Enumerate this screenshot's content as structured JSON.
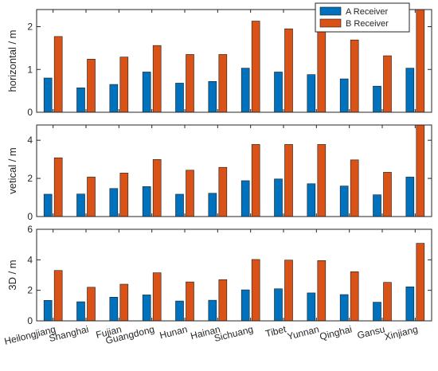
{
  "colors": {
    "series_a": "#0072BD",
    "series_b": "#D95319",
    "axis": "#262626",
    "grid": "#e6e6e6"
  },
  "chart_data": [
    {
      "type": "bar",
      "ylabel": "horizontal / m",
      "ylim": [
        0,
        2.4
      ],
      "yticks": [
        0,
        1,
        2
      ],
      "grid": false,
      "legend": "top-right",
      "categories": [
        "Heilongjiang",
        "Shanghai",
        "Fujian",
        "Guangdong",
        "Hunan",
        "Hainan",
        "Sichuang",
        "Tibet",
        "Yunnan",
        "Qinghai",
        "Gansu",
        "Xinjiang"
      ],
      "series": [
        {
          "name": "A Receiver",
          "values": [
            0.8,
            0.57,
            0.65,
            0.94,
            0.68,
            0.72,
            1.03,
            0.94,
            0.88,
            0.78,
            0.61,
            1.03
          ]
        },
        {
          "name": "B Receiver",
          "values": [
            1.77,
            1.24,
            1.29,
            1.56,
            1.35,
            1.35,
            2.13,
            1.95,
            1.88,
            1.69,
            1.32,
            2.4
          ]
        }
      ]
    },
    {
      "type": "bar",
      "ylabel": "vetical / m",
      "ylim": [
        0,
        4.8
      ],
      "yticks": [
        0,
        2,
        4
      ],
      "grid": false,
      "categories": [
        "Heilongjiang",
        "Shanghai",
        "Fujian",
        "Guangdong",
        "Hunan",
        "Hainan",
        "Sichuang",
        "Tibet",
        "Yunnan",
        "Qinghai",
        "Gansu",
        "Xinjiang"
      ],
      "series": [
        {
          "name": "A Receiver",
          "values": [
            1.17,
            1.18,
            1.47,
            1.57,
            1.17,
            1.22,
            1.88,
            1.97,
            1.72,
            1.6,
            1.14,
            2.07
          ]
        },
        {
          "name": "B Receiver",
          "values": [
            3.08,
            2.07,
            2.28,
            2.99,
            2.43,
            2.58,
            3.78,
            3.78,
            3.78,
            2.97,
            2.32,
            4.8
          ]
        }
      ]
    },
    {
      "type": "bar",
      "ylabel": "3D / m",
      "ylim": [
        0,
        6
      ],
      "yticks": [
        0,
        2,
        4,
        6
      ],
      "grid": false,
      "categories": [
        "Heilongjiang",
        "Shanghai",
        "Fujian",
        "Guangdong",
        "Hunan",
        "Hainan",
        "Sichuang",
        "Tibet",
        "Yunnan",
        "Qinghai",
        "Gansu",
        "Xinjiang"
      ],
      "series": [
        {
          "name": "A Receiver",
          "values": [
            1.34,
            1.25,
            1.55,
            1.7,
            1.3,
            1.35,
            2.03,
            2.1,
            1.83,
            1.72,
            1.22,
            2.23
          ]
        },
        {
          "name": "B Receiver",
          "values": [
            3.3,
            2.2,
            2.4,
            3.15,
            2.55,
            2.7,
            4.02,
            3.98,
            3.95,
            3.22,
            2.52,
            5.08
          ]
        }
      ]
    }
  ]
}
